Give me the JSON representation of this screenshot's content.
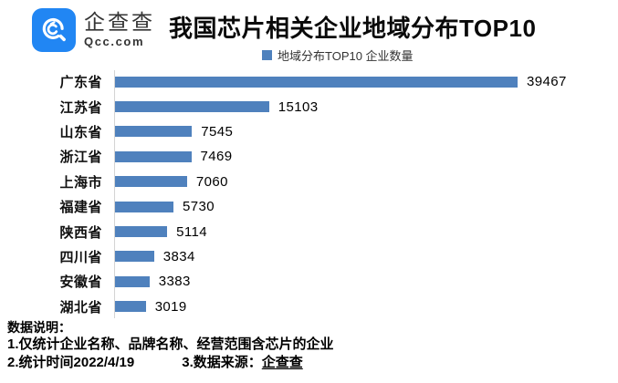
{
  "brand": {
    "name": "企查查",
    "domain": "Qcc.com"
  },
  "title": "我国芯片相关企业地域分布TOP10",
  "legend": {
    "label": "地域分布TOP10 企业数量"
  },
  "chart_data": {
    "type": "bar",
    "orientation": "horizontal",
    "title": "我国芯片相关企业地域分布TOP10",
    "series_name": "地域分布TOP10 企业数量",
    "categories": [
      "广东省",
      "江苏省",
      "山东省",
      "浙江省",
      "上海市",
      "福建省",
      "陕西省",
      "四川省",
      "安徽省",
      "湖北省"
    ],
    "values": [
      39467,
      15103,
      7545,
      7469,
      7060,
      5730,
      5114,
      3834,
      3383,
      3019
    ],
    "xlim": [
      0,
      40000
    ],
    "grid": false,
    "value_labels": true,
    "legend_position": "top-center"
  },
  "footer": {
    "heading": "数据说明：",
    "note1": "1.仅统计企业名称、品牌名称、经营范围含芯片的企业",
    "note2": "2.统计时间2022/4/19",
    "note3_prefix": "3.数据来源：",
    "note3_source": "企查查"
  },
  "colors": {
    "bar": "#4f81bd",
    "logo_blue": "#2186f3",
    "axis": "#d4d4d4"
  }
}
